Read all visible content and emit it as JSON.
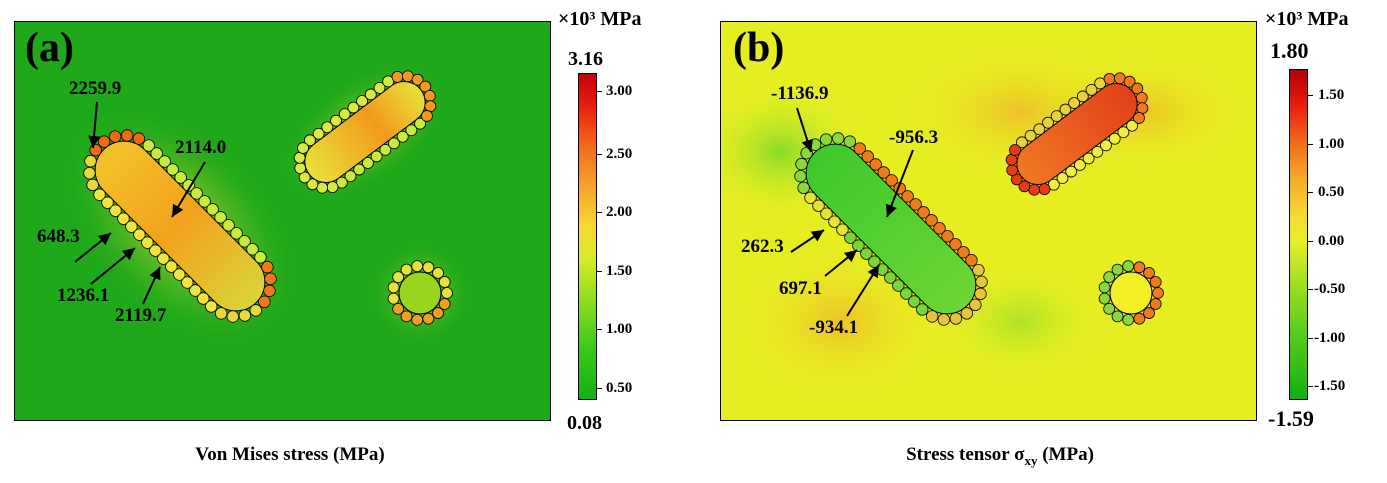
{
  "panel_a": {
    "letter": "(a)",
    "caption": "Von Mises stress (MPa)",
    "unit": "×10³ MPa",
    "max_label": "3.16",
    "min_label": "0.08",
    "ticks": [
      "3.00",
      "2.50",
      "2.00",
      "1.50",
      "1.00",
      "0.50"
    ],
    "annotations": [
      "2259.9",
      "2114.0",
      "648.3",
      "1236.1",
      "2119.7"
    ],
    "colors": {
      "background": "#1faa1a",
      "high": "#c8000a",
      "mid": "#f29a1e",
      "low": "#22b022"
    }
  },
  "panel_b": {
    "letter": "(b)",
    "caption_prefix": "Stress tensor σ",
    "caption_sub": "xy",
    "caption_suffix": " (MPa)",
    "unit": "×10³ MPa",
    "max_label": "1.80",
    "min_label": "-1.59",
    "ticks": [
      "1.50",
      "1.00",
      "0.50",
      "0.00",
      "-0.50",
      "-1.00",
      "-1.50"
    ],
    "annotations": [
      "-1136.9",
      "-956.3",
      "262.3",
      "697.1",
      "-934.1"
    ],
    "colors": {
      "background": "#e8f020",
      "high": "#c8000a",
      "low": "#22b022"
    }
  }
}
